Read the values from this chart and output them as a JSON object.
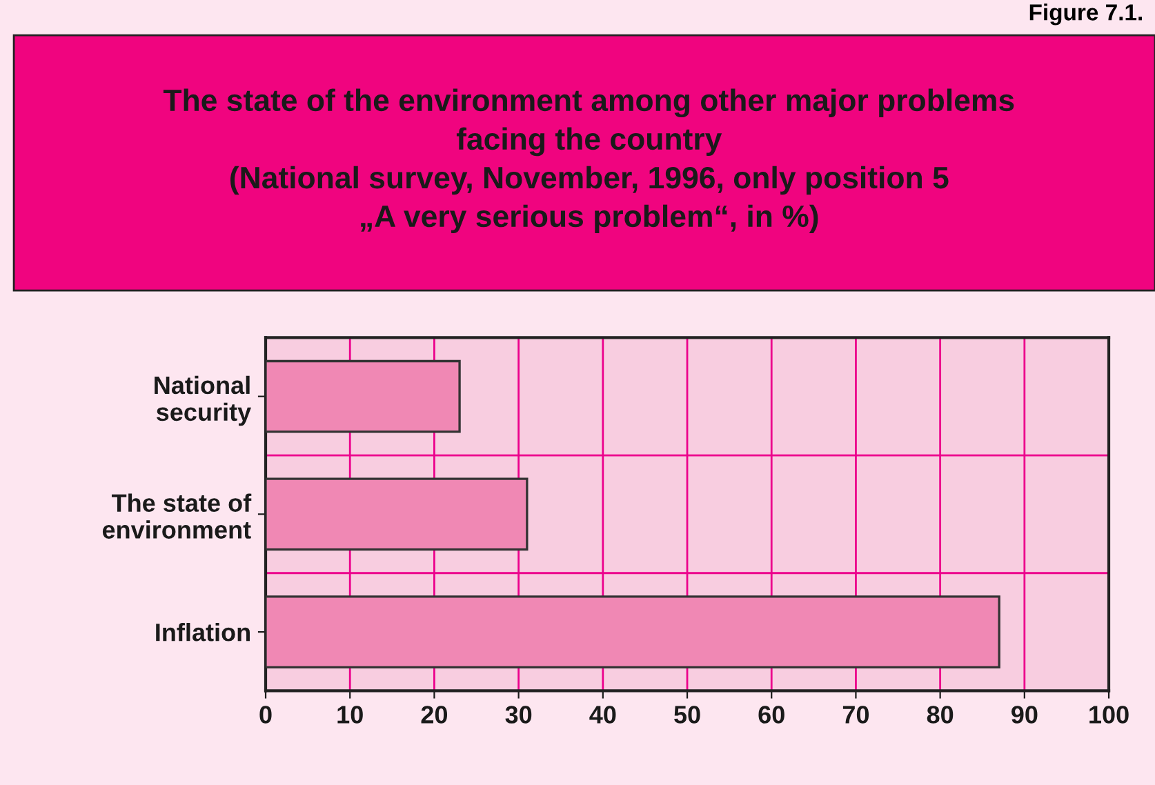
{
  "chart_data": {
    "type": "bar",
    "orientation": "horizontal",
    "title": "The state of the environment among other major problems\nfacing the country\n(National survey, November, 1996, only position 5\n„A very serious problem“, in %)",
    "annotations": [
      "Figure 7.1."
    ],
    "categories": [
      "National\nsecurity",
      "The state of\nenvironment",
      "Inflation"
    ],
    "values": [
      23,
      31,
      87
    ],
    "color": "#f088b4",
    "xlim": [
      0,
      100
    ],
    "xticks": [
      0,
      10,
      20,
      30,
      40,
      50,
      60,
      70,
      80,
      90,
      100
    ],
    "grid": true
  }
}
